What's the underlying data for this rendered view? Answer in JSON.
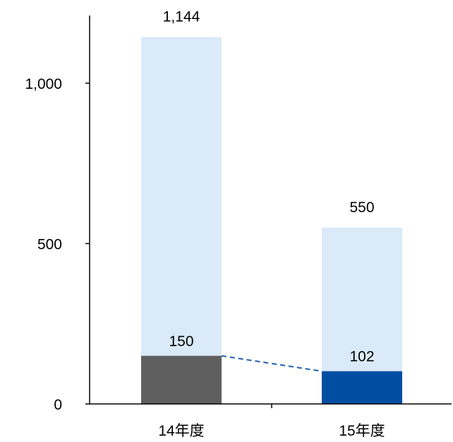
{
  "chart_data": {
    "type": "bar",
    "categories": [
      "14年度",
      "15年度"
    ],
    "series": [
      {
        "values": [
          1144,
          550
        ],
        "value_labels": [
          "1,144",
          "550"
        ],
        "color": "#daeaf8"
      },
      {
        "values": [
          150,
          102
        ],
        "value_labels": [
          "150",
          "102"
        ],
        "colors": [
          "#5f5f5f",
          "#004ea2"
        ]
      }
    ],
    "connector": {
      "style": "dashed",
      "color": "#1f5fb0"
    },
    "y_ticks": [
      0,
      500,
      1000
    ],
    "y_tick_labels": [
      "0",
      "500",
      "1,000"
    ],
    "ylim": [
      0,
      1260
    ],
    "grid": false,
    "legend": "none",
    "title": "",
    "xlabel": "",
    "ylabel": ""
  }
}
